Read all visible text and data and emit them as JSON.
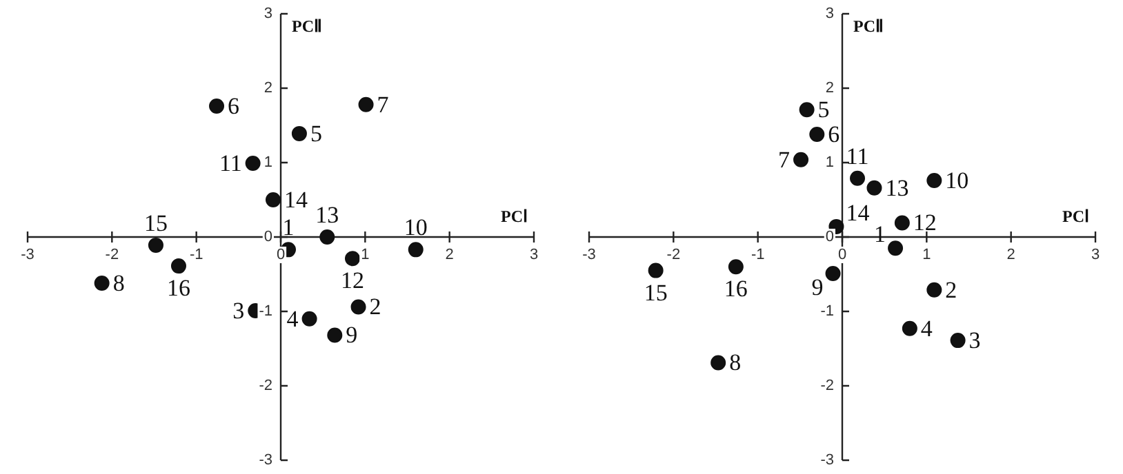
{
  "chart_data": [
    {
      "type": "scatter",
      "xlabel": "PCⅠ",
      "ylabel": "PCⅡ",
      "marker": "circle",
      "legend": false,
      "series": [
        {
          "color": "#111111",
          "x": [
            0.09,
            0.92,
            -0.3,
            0.34,
            0.22,
            -0.76,
            1.01,
            -2.12,
            0.64,
            1.6,
            -0.33,
            0.85,
            0.55,
            -0.09,
            -1.48,
            -1.21
          ],
          "values": [
            -0.17,
            -0.94,
            -0.99,
            -1.1,
            1.39,
            1.76,
            1.78,
            -0.62,
            -1.32,
            -0.17,
            0.99,
            -0.29,
            0.0,
            0.5,
            -0.11,
            -0.39
          ]
        }
      ],
      "annotations": [
        {
          "text": "1",
          "x": 0.09,
          "y": -0.17
        },
        {
          "text": "2",
          "x": 0.92,
          "y": -0.94
        },
        {
          "text": "3",
          "x": -0.3,
          "y": -0.99
        },
        {
          "text": "4",
          "x": 0.34,
          "y": -1.1
        },
        {
          "text": "5",
          "x": 0.22,
          "y": 1.39
        },
        {
          "text": "6",
          "x": -0.76,
          "y": 1.76
        },
        {
          "text": "7",
          "x": 1.01,
          "y": 1.78
        },
        {
          "text": "8",
          "x": -2.12,
          "y": -0.62
        },
        {
          "text": "9",
          "x": 0.64,
          "y": -1.32
        },
        {
          "text": "10",
          "x": 1.6,
          "y": -0.17
        },
        {
          "text": "11",
          "x": -0.33,
          "y": 0.99
        },
        {
          "text": "12",
          "x": 0.85,
          "y": -0.29
        },
        {
          "text": "13",
          "x": 0.55,
          "y": 0.0
        },
        {
          "text": "14",
          "x": -0.09,
          "y": 0.5
        },
        {
          "text": "15",
          "x": -1.48,
          "y": -0.11
        },
        {
          "text": "16",
          "x": -1.21,
          "y": -0.39
        }
      ],
      "xlim": [
        -3,
        3
      ],
      "ylim": [
        -3,
        3
      ],
      "xticks": [
        -3,
        -2,
        -1,
        0,
        1,
        2,
        3
      ],
      "yticks": [
        -3,
        -2,
        -1,
        0,
        1,
        2,
        3
      ]
    },
    {
      "type": "scatter",
      "xlabel": "PCⅠ",
      "ylabel": "PCⅡ",
      "marker": "circle",
      "legend": false,
      "series": [
        {
          "color": "#111111",
          "x": [
            0.63,
            1.09,
            1.37,
            0.8,
            -0.42,
            -0.3,
            -0.49,
            -1.47,
            -0.11,
            1.09,
            0.18,
            0.71,
            0.38,
            -0.07,
            -2.21,
            -1.26
          ],
          "values": [
            -0.15,
            -0.71,
            -1.39,
            -1.23,
            1.71,
            1.38,
            1.04,
            -1.69,
            -0.49,
            0.76,
            0.79,
            0.19,
            0.66,
            0.14,
            -0.45,
            -0.4
          ]
        }
      ],
      "annotations": [
        {
          "text": "1",
          "x": 0.63,
          "y": -0.15
        },
        {
          "text": "2",
          "x": 1.09,
          "y": -0.71
        },
        {
          "text": "3",
          "x": 1.37,
          "y": -1.39
        },
        {
          "text": "4",
          "x": 0.8,
          "y": -1.23
        },
        {
          "text": "5",
          "x": -0.42,
          "y": 1.71
        },
        {
          "text": "6",
          "x": -0.3,
          "y": 1.38
        },
        {
          "text": "7",
          "x": -0.49,
          "y": 1.04
        },
        {
          "text": "8",
          "x": -1.47,
          "y": -1.69
        },
        {
          "text": "9",
          "x": -0.11,
          "y": -0.49
        },
        {
          "text": "10",
          "x": 1.09,
          "y": 0.76
        },
        {
          "text": "11",
          "x": 0.18,
          "y": 0.79
        },
        {
          "text": "12",
          "x": 0.71,
          "y": 0.19
        },
        {
          "text": "13",
          "x": 0.38,
          "y": 0.66
        },
        {
          "text": "14",
          "x": -0.07,
          "y": 0.14
        },
        {
          "text": "15",
          "x": -2.21,
          "y": -0.45
        },
        {
          "text": "16",
          "x": -1.26,
          "y": -0.4
        }
      ],
      "xlim": [
        -3,
        3
      ],
      "ylim": [
        -3,
        3
      ],
      "xticks": [
        -3,
        -2,
        -1,
        0,
        1,
        2,
        3
      ],
      "yticks": [
        -3,
        -2,
        -1,
        0,
        1,
        2,
        3
      ]
    }
  ]
}
